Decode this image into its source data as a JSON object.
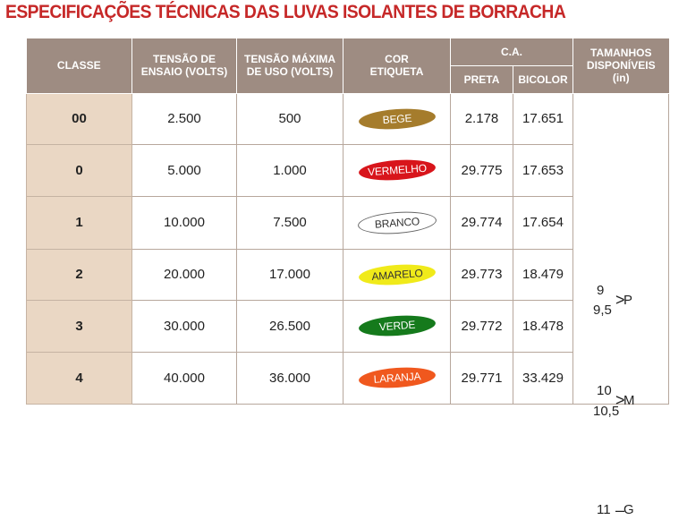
{
  "title": "ESPECIFICAÇÕES TÉCNICAS DAS LUVAS ISOLANTES DE BORRACHA",
  "headers": {
    "classe": "CLASSE",
    "tensao_ensaio": [
      "TENSÃO DE",
      "ENSAIO (VOLTS)"
    ],
    "tensao_maxima": [
      "TENSÃO MÁXIMA",
      "DE USO (VOLTS)"
    ],
    "cor": [
      "COR",
      "ETIQUETA"
    ],
    "ca": "C.A.",
    "preta": "PRETA",
    "bicolor": "BICOLOR",
    "tamanhos": [
      "TAMANHOS",
      "DISPONÍVEIS",
      "(in)"
    ]
  },
  "rows": [
    {
      "classe": "00",
      "ensaio": "2.500",
      "maxima": "500",
      "cor": "BEGE",
      "cor_bg": "#a57c2c",
      "cor_text": "#ffffff",
      "preta": "2.178",
      "bicolor": "17.651"
    },
    {
      "classe": "0",
      "ensaio": "5.000",
      "maxima": "1.000",
      "cor": "VERMELHO",
      "cor_bg": "#d8151b",
      "cor_text": "#ffffff",
      "preta": "29.775",
      "bicolor": "17.653"
    },
    {
      "classe": "1",
      "ensaio": "10.000",
      "maxima": "7.500",
      "cor": "BRANCO",
      "cor_bg": "#ffffff",
      "cor_text": "#333333",
      "preta": "29.774",
      "bicolor": "17.654"
    },
    {
      "classe": "2",
      "ensaio": "20.000",
      "maxima": "17.000",
      "cor": "AMARELO",
      "cor_bg": "#f0ea1a",
      "cor_text": "#333333",
      "preta": "29.773",
      "bicolor": "18.479"
    },
    {
      "classe": "3",
      "ensaio": "30.000",
      "maxima": "26.500",
      "cor": "VERDE",
      "cor_bg": "#157a1c",
      "cor_text": "#ffffff",
      "preta": "29.772",
      "bicolor": "18.478"
    },
    {
      "classe": "4",
      "ensaio": "40.000",
      "maxima": "36.000",
      "cor": "LARANJA",
      "cor_bg": "#f0581e",
      "cor_text": "#ffffff",
      "preta": "29.771",
      "bicolor": "33.429"
    }
  ],
  "sizes": [
    {
      "a": "9",
      "b": "9,5",
      "sym": ">",
      "letter": "P"
    },
    {
      "a": "10",
      "b": "10,5",
      "sym": ">",
      "letter": "M"
    },
    {
      "a": "11",
      "sym": "–",
      "letter": "G"
    }
  ],
  "colors": {
    "title": "#c62828",
    "header": "#9e8c82",
    "classe_bg": "#ead7c4"
  }
}
